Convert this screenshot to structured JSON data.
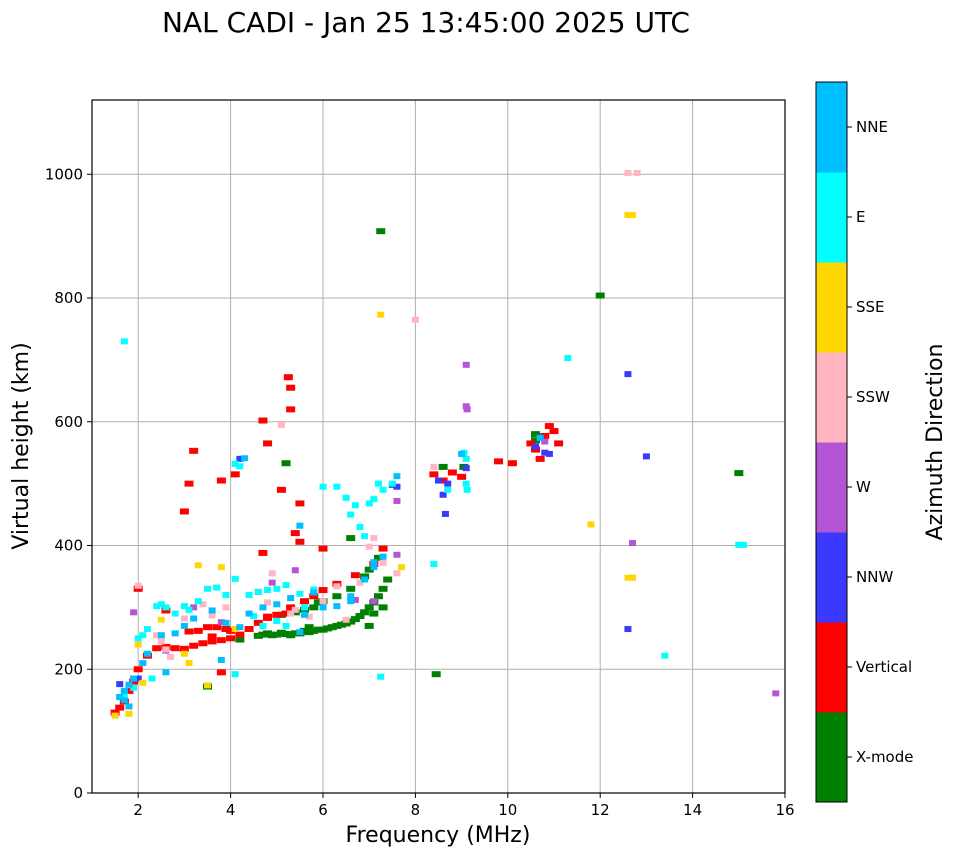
{
  "chart_data": {
    "type": "scatter",
    "title": "NAL CADI - Jan 25 13:45:00 2025 UTC",
    "xlabel": "Frequency (MHz)",
    "ylabel": "Virtual height (km)",
    "xlim": [
      1,
      16
    ],
    "ylim": [
      0,
      1120
    ],
    "xticks": [
      2,
      4,
      6,
      8,
      10,
      12,
      14,
      16
    ],
    "yticks": [
      0,
      200,
      400,
      600,
      800,
      1000
    ],
    "grid": true,
    "colorbar": {
      "label": "Azimuth Direction",
      "position": "right",
      "categories": [
        "X-mode",
        "Vertical",
        "NNW",
        "W",
        "SSW",
        "SSE",
        "E",
        "NNE"
      ],
      "colors": [
        "#008000",
        "#ff0000",
        "#3a3aff",
        "#b455d6",
        "#ffb6c1",
        "#ffd700",
        "#00ffff",
        "#00bfff"
      ]
    },
    "series": [
      {
        "name": "X-mode",
        "points": [
          [
            4.6,
            254
          ],
          [
            4.7,
            256
          ],
          [
            4.8,
            258
          ],
          [
            4.9,
            255
          ],
          [
            5.0,
            256
          ],
          [
            5.1,
            259
          ],
          [
            5.2,
            257
          ],
          [
            5.3,
            255
          ],
          [
            5.4,
            258
          ],
          [
            5.5,
            258
          ],
          [
            5.6,
            262
          ],
          [
            5.7,
            260
          ],
          [
            5.8,
            262
          ],
          [
            5.9,
            264
          ],
          [
            6.0,
            264
          ],
          [
            6.1,
            266
          ],
          [
            6.2,
            268
          ],
          [
            6.3,
            270
          ],
          [
            6.4,
            272
          ],
          [
            6.5,
            274
          ],
          [
            6.6,
            277
          ],
          [
            6.7,
            281
          ],
          [
            6.8,
            286
          ],
          [
            6.9,
            292
          ],
          [
            7.0,
            300
          ],
          [
            7.1,
            308
          ],
          [
            7.2,
            318
          ],
          [
            7.3,
            330
          ],
          [
            7.4,
            345
          ],
          [
            5.4,
            292
          ],
          [
            5.6,
            296
          ],
          [
            5.8,
            300
          ],
          [
            5.9,
            308
          ],
          [
            6.0,
            310
          ],
          [
            6.3,
            318
          ],
          [
            6.6,
            330
          ],
          [
            6.9,
            350
          ],
          [
            7.0,
            361
          ],
          [
            7.2,
            380
          ],
          [
            6.6,
            412
          ],
          [
            7.0,
            270
          ],
          [
            7.1,
            290
          ],
          [
            7.3,
            300
          ],
          [
            5.2,
            533
          ],
          [
            7.25,
            908
          ],
          [
            12.0,
            804
          ],
          [
            15.0,
            517
          ],
          [
            8.45,
            192
          ],
          [
            8.6,
            527
          ],
          [
            9.05,
            527
          ],
          [
            10.6,
            570
          ],
          [
            10.6,
            580
          ],
          [
            4.2,
            248
          ],
          [
            5.1,
            288
          ],
          [
            5.7,
            268
          ],
          [
            3.5,
            172
          ]
        ]
      },
      {
        "name": "Vertical",
        "points": [
          [
            1.5,
            130
          ],
          [
            1.6,
            138
          ],
          [
            1.7,
            148
          ],
          [
            1.8,
            165
          ],
          [
            1.9,
            180
          ],
          [
            2.0,
            200
          ],
          [
            2.2,
            222
          ],
          [
            2.4,
            234
          ],
          [
            2.6,
            236
          ],
          [
            2.8,
            234
          ],
          [
            3.0,
            233
          ],
          [
            3.2,
            238
          ],
          [
            3.4,
            242
          ],
          [
            3.6,
            245
          ],
          [
            3.8,
            247
          ],
          [
            4.0,
            250
          ],
          [
            4.2,
            256
          ],
          [
            4.4,
            265
          ],
          [
            4.6,
            275
          ],
          [
            4.8,
            283
          ],
          [
            5.0,
            288
          ],
          [
            5.2,
            290
          ],
          [
            3.1,
            261
          ],
          [
            3.3,
            262
          ],
          [
            3.5,
            268
          ],
          [
            3.7,
            268
          ],
          [
            3.9,
            265
          ],
          [
            4.0,
            262
          ],
          [
            4.8,
            285
          ],
          [
            5.3,
            300
          ],
          [
            5.6,
            310
          ],
          [
            5.8,
            318
          ],
          [
            6.0,
            328
          ],
          [
            6.3,
            338
          ],
          [
            6.7,
            352
          ],
          [
            7.1,
            370
          ],
          [
            7.3,
            395
          ],
          [
            3.0,
            455
          ],
          [
            3.1,
            500
          ],
          [
            3.2,
            553
          ],
          [
            3.8,
            505
          ],
          [
            4.1,
            515
          ],
          [
            4.7,
            388
          ],
          [
            5.1,
            490
          ],
          [
            5.3,
            655
          ],
          [
            5.4,
            420
          ],
          [
            5.5,
            406
          ],
          [
            4.7,
            602
          ],
          [
            4.8,
            565
          ],
          [
            5.25,
            672
          ],
          [
            5.3,
            620
          ],
          [
            5.5,
            468
          ],
          [
            6.0,
            395
          ],
          [
            8.4,
            515
          ],
          [
            8.6,
            505
          ],
          [
            8.8,
            518
          ],
          [
            9.0,
            511
          ],
          [
            9.8,
            536
          ],
          [
            10.1,
            533
          ],
          [
            10.5,
            565
          ],
          [
            10.6,
            555
          ],
          [
            10.7,
            540
          ],
          [
            10.8,
            577
          ],
          [
            10.9,
            593
          ],
          [
            11.0,
            585
          ],
          [
            11.1,
            565
          ],
          [
            2.0,
            330
          ],
          [
            2.6,
            295
          ],
          [
            3.6,
            253
          ],
          [
            3.8,
            195
          ]
        ]
      },
      {
        "name": "NNW",
        "points": [
          [
            8.5,
            505
          ],
          [
            8.6,
            482
          ],
          [
            8.65,
            451
          ],
          [
            8.7,
            500
          ],
          [
            9.1,
            525
          ],
          [
            10.6,
            560
          ],
          [
            10.7,
            575
          ],
          [
            10.8,
            550
          ],
          [
            10.9,
            548
          ],
          [
            12.6,
            677
          ],
          [
            12.6,
            265
          ],
          [
            13.0,
            544
          ],
          [
            7.5,
            498
          ],
          [
            7.6,
            495
          ],
          [
            4.2,
            540
          ],
          [
            2.0,
            185
          ],
          [
            1.6,
            176
          ]
        ]
      },
      {
        "name": "W",
        "points": [
          [
            9.1,
            692
          ],
          [
            9.1,
            625
          ],
          [
            9.12,
            620
          ],
          [
            7.6,
            472
          ],
          [
            7.6,
            385
          ],
          [
            12.7,
            404
          ],
          [
            15.8,
            161
          ],
          [
            4.9,
            340
          ],
          [
            4.6,
            325
          ],
          [
            6.7,
            312
          ],
          [
            7.1,
            310
          ],
          [
            3.8,
            276
          ],
          [
            3.2,
            300
          ],
          [
            5.4,
            360
          ],
          [
            10.8,
            568
          ],
          [
            2.6,
            230
          ],
          [
            1.9,
            292
          ]
        ]
      },
      {
        "name": "SSW",
        "points": [
          [
            2.0,
            335
          ],
          [
            2.4,
            255
          ],
          [
            2.5,
            245
          ],
          [
            2.6,
            232
          ],
          [
            2.7,
            220
          ],
          [
            3.0,
            282
          ],
          [
            3.4,
            305
          ],
          [
            3.9,
            300
          ],
          [
            4.9,
            355
          ],
          [
            5.1,
            595
          ],
          [
            5.3,
            290
          ],
          [
            5.4,
            296
          ],
          [
            5.7,
            285
          ],
          [
            6.0,
            310
          ],
          [
            6.3,
            334
          ],
          [
            6.8,
            340
          ],
          [
            7.0,
            398
          ],
          [
            7.1,
            412
          ],
          [
            7.3,
            372
          ],
          [
            7.6,
            355
          ],
          [
            8.0,
            765
          ],
          [
            8.4,
            527
          ],
          [
            12.6,
            1002
          ],
          [
            12.8,
            1002
          ],
          [
            3.6,
            287
          ],
          [
            4.8,
            308
          ],
          [
            6.5,
            280
          ]
        ]
      },
      {
        "name": "SSE",
        "points": [
          [
            1.5,
            125
          ],
          [
            1.8,
            128
          ],
          [
            2.0,
            240
          ],
          [
            2.1,
            178
          ],
          [
            3.1,
            210
          ],
          [
            3.3,
            368
          ],
          [
            3.5,
            174
          ],
          [
            3.8,
            365
          ],
          [
            4.1,
            265
          ],
          [
            7.25,
            773
          ],
          [
            7.7,
            365
          ],
          [
            11.8,
            434
          ],
          [
            12.6,
            934
          ],
          [
            12.7,
            934
          ],
          [
            12.6,
            348
          ],
          [
            12.7,
            348
          ],
          [
            2.5,
            280
          ],
          [
            3.0,
            225
          ]
        ]
      },
      {
        "name": "E",
        "points": [
          [
            2.0,
            250
          ],
          [
            2.1,
            255
          ],
          [
            2.2,
            265
          ],
          [
            2.4,
            302
          ],
          [
            2.5,
            305
          ],
          [
            2.6,
            300
          ],
          [
            3.0,
            302
          ],
          [
            3.1,
            296
          ],
          [
            3.3,
            310
          ],
          [
            3.5,
            330
          ],
          [
            3.7,
            332
          ],
          [
            3.9,
            320
          ],
          [
            4.1,
            346
          ],
          [
            4.1,
            532
          ],
          [
            4.2,
            528
          ],
          [
            4.4,
            320
          ],
          [
            4.6,
            325
          ],
          [
            4.8,
            328
          ],
          [
            5.0,
            330
          ],
          [
            5.2,
            336
          ],
          [
            5.5,
            322
          ],
          [
            5.8,
            329
          ],
          [
            6.0,
            495
          ],
          [
            6.3,
            495
          ],
          [
            6.5,
            477
          ],
          [
            6.6,
            450
          ],
          [
            6.7,
            465
          ],
          [
            6.8,
            430
          ],
          [
            6.9,
            415
          ],
          [
            7.0,
            468
          ],
          [
            7.1,
            475
          ],
          [
            7.2,
            500
          ],
          [
            7.3,
            490
          ],
          [
            7.5,
            500
          ],
          [
            5.6,
            300
          ],
          [
            5.2,
            270
          ],
          [
            5.0,
            278
          ],
          [
            4.7,
            270
          ],
          [
            4.5,
            286
          ],
          [
            2.8,
            290
          ],
          [
            2.3,
            185
          ],
          [
            4.1,
            192
          ],
          [
            7.25,
            188
          ],
          [
            8.4,
            370
          ],
          [
            8.7,
            490
          ],
          [
            9.05,
            550
          ],
          [
            9.1,
            540
          ],
          [
            9.1,
            500
          ],
          [
            9.12,
            490
          ],
          [
            11.3,
            703
          ],
          [
            13.4,
            222
          ],
          [
            15.0,
            401
          ],
          [
            15.1,
            401
          ],
          [
            1.7,
            730
          ],
          [
            1.6,
            155
          ],
          [
            1.7,
            160
          ],
          [
            1.9,
            170
          ]
        ]
      },
      {
        "name": "NNE",
        "points": [
          [
            1.6,
            155
          ],
          [
            1.7,
            165
          ],
          [
            1.8,
            175
          ],
          [
            1.9,
            185
          ],
          [
            2.1,
            210
          ],
          [
            2.2,
            225
          ],
          [
            2.5,
            255
          ],
          [
            2.8,
            258
          ],
          [
            3.0,
            270
          ],
          [
            3.2,
            282
          ],
          [
            3.6,
            295
          ],
          [
            3.9,
            275
          ],
          [
            4.2,
            268
          ],
          [
            4.4,
            290
          ],
          [
            4.7,
            300
          ],
          [
            5.0,
            305
          ],
          [
            5.3,
            315
          ],
          [
            5.6,
            288
          ],
          [
            5.8,
            324
          ],
          [
            6.0,
            300
          ],
          [
            6.3,
            302
          ],
          [
            6.6,
            318
          ],
          [
            6.9,
            345
          ],
          [
            7.1,
            365
          ],
          [
            7.3,
            382
          ],
          [
            7.6,
            512
          ],
          [
            4.3,
            541
          ],
          [
            5.5,
            432
          ],
          [
            5.5,
            260
          ],
          [
            6.6,
            310
          ],
          [
            7.1,
            373
          ],
          [
            9.0,
            548
          ],
          [
            10.7,
            574
          ],
          [
            2.6,
            195
          ],
          [
            3.8,
            215
          ],
          [
            1.7,
            150
          ],
          [
            1.8,
            140
          ]
        ]
      }
    ]
  }
}
